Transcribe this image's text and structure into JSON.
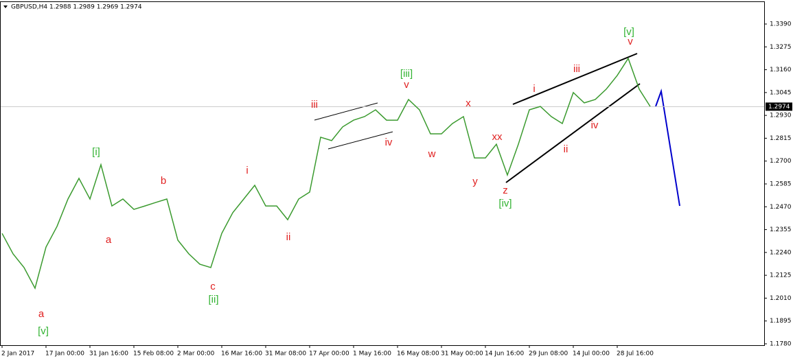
{
  "chart_data": {
    "type": "line",
    "title": "GBPUSD,H4  1.2988 1.2989 1.2969 1.2974",
    "categories": [
      "2 Jan 2017",
      null,
      null,
      null,
      "17 Jan 00:00",
      null,
      null,
      null,
      "31 Jan 16:00",
      null,
      null,
      null,
      "15 Feb 08:00",
      null,
      null,
      null,
      "2 Mar 00:00",
      null,
      null,
      null,
      "16 Mar 16:00",
      null,
      null,
      null,
      "31 Mar 08:00",
      null,
      null,
      null,
      "17 Apr 00:00",
      null,
      null,
      null,
      "1 May 16:00",
      null,
      null,
      null,
      "16 May 08:00",
      null,
      null,
      null,
      "31 May 00:00",
      null,
      null,
      null,
      "14 Jun 16:00",
      null,
      null,
      null,
      "29 Jun 08:00",
      null,
      null,
      null,
      "14 Jul 00:00",
      null,
      null,
      null,
      "28 Jul 16:00",
      null,
      null,
      null
    ],
    "series": [
      {
        "name": "GBPUSD",
        "color": "#3a9a2e",
        "values": [
          1.2336,
          1.2233,
          1.2164,
          1.206,
          1.2267,
          1.2371,
          1.2509,
          1.2613,
          1.2509,
          1.2682,
          1.2474,
          1.2509,
          1.2457,
          1.2474,
          1.2492,
          1.2509,
          1.2302,
          1.2233,
          1.2181,
          1.2164,
          1.2336,
          1.244,
          1.2509,
          1.2578,
          1.2474,
          1.2474,
          1.2405,
          1.2509,
          1.2544,
          1.282,
          1.2803,
          1.2872,
          1.2906,
          1.2924,
          1.2958,
          1.2906,
          1.2906,
          1.301,
          1.2958,
          1.2837,
          1.2837,
          1.2889,
          1.2924,
          1.2716,
          1.2716,
          1.2785,
          1.263,
          1.2785,
          1.2958,
          1.2975,
          1.2924,
          1.2889,
          1.3045,
          1.2993,
          1.301,
          1.3062,
          1.3131,
          1.3217,
          1.3062,
          1.2975
        ]
      }
    ],
    "ylim": [
      1.1773,
      1.3504
    ],
    "yticks": [
      {
        "value": 1.339,
        "label": "1.3390"
      },
      1.3275,
      {
        "value": 1.316,
        "label": "1.3160"
      },
      1.3045,
      {
        "value": 1.293,
        "label": "1.2930"
      },
      1.2815,
      {
        "value": 1.27,
        "label": "1.2700"
      },
      1.2585,
      {
        "value": 1.247,
        "label": "1.2470"
      },
      1.2355,
      {
        "value": 1.224,
        "label": "1.2240"
      },
      1.2125,
      {
        "value": 1.201,
        "label": "1.2010"
      },
      1.1895,
      {
        "value": 1.178,
        "label": "1.1780"
      }
    ],
    "current_price": 1.2974,
    "annotations": [
      {
        "text": "[v]",
        "color": "#32b332"
      },
      {
        "text": "a",
        "color": "#e02020"
      },
      {
        "text": "[i]",
        "color": "#32b332"
      },
      {
        "text": "a",
        "color": "#e02020"
      },
      {
        "text": "b",
        "color": "#e02020"
      },
      {
        "text": "c",
        "color": "#e02020"
      },
      {
        "text": "[ii]",
        "color": "#32b332"
      },
      {
        "text": "i",
        "color": "#e02020"
      },
      {
        "text": "ii",
        "color": "#e02020"
      },
      {
        "text": "iii",
        "color": "#e02020"
      },
      {
        "text": "iv",
        "color": "#e02020"
      },
      {
        "text": "[iii]",
        "color": "#32b332"
      },
      {
        "text": "v",
        "color": "#e02020"
      },
      {
        "text": "w",
        "color": "#e02020"
      },
      {
        "text": "x",
        "color": "#e02020"
      },
      {
        "text": "y",
        "color": "#e02020"
      },
      {
        "text": "xx",
        "color": "#e02020"
      },
      {
        "text": "z",
        "color": "#e02020"
      },
      {
        "text": "[iv]",
        "color": "#32b332"
      },
      {
        "text": "i",
        "color": "#e02020"
      },
      {
        "text": "ii",
        "color": "#e02020"
      },
      {
        "text": "iii",
        "color": "#e02020"
      },
      {
        "text": "iv",
        "color": "#e02020"
      },
      {
        "text": "[v]",
        "color": "#32b332"
      },
      {
        "text": "v",
        "color": "#e02020"
      }
    ]
  }
}
